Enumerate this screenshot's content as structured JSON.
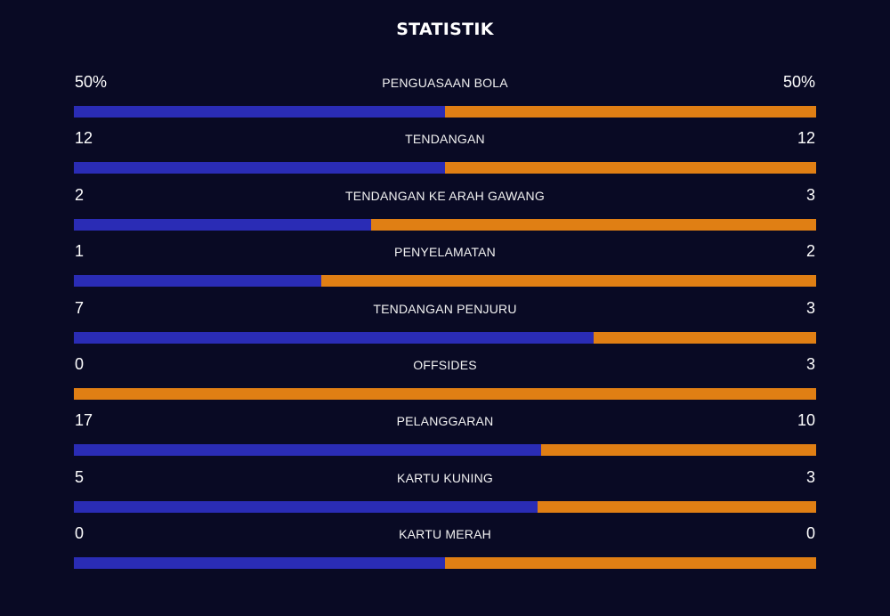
{
  "title": "STATISTIK",
  "colors": {
    "background": "#090a24",
    "home": "#2a2cb5",
    "away": "#e07f14"
  },
  "stats": [
    {
      "label": "PENGUASAAN BOLA",
      "home": "50%",
      "away": "50%",
      "home_share": 0.5
    },
    {
      "label": "TENDANGAN",
      "home": "12",
      "away": "12",
      "home_share": 0.5
    },
    {
      "label": "TENDANGAN KE ARAH GAWANG",
      "home": "2",
      "away": "3",
      "home_share": 0.4
    },
    {
      "label": "PENYELAMATAN",
      "home": "1",
      "away": "2",
      "home_share": 0.333
    },
    {
      "label": "TENDANGAN PENJURU",
      "home": "7",
      "away": "3",
      "home_share": 0.7
    },
    {
      "label": "OFFSIDES",
      "home": "0",
      "away": "3",
      "home_share": 0.0
    },
    {
      "label": "PELANGGARAN",
      "home": "17",
      "away": "10",
      "home_share": 0.63
    },
    {
      "label": "KARTU KUNING",
      "home": "5",
      "away": "3",
      "home_share": 0.625
    },
    {
      "label": "KARTU MERAH",
      "home": "0",
      "away": "0",
      "home_share": 0.5
    }
  ]
}
